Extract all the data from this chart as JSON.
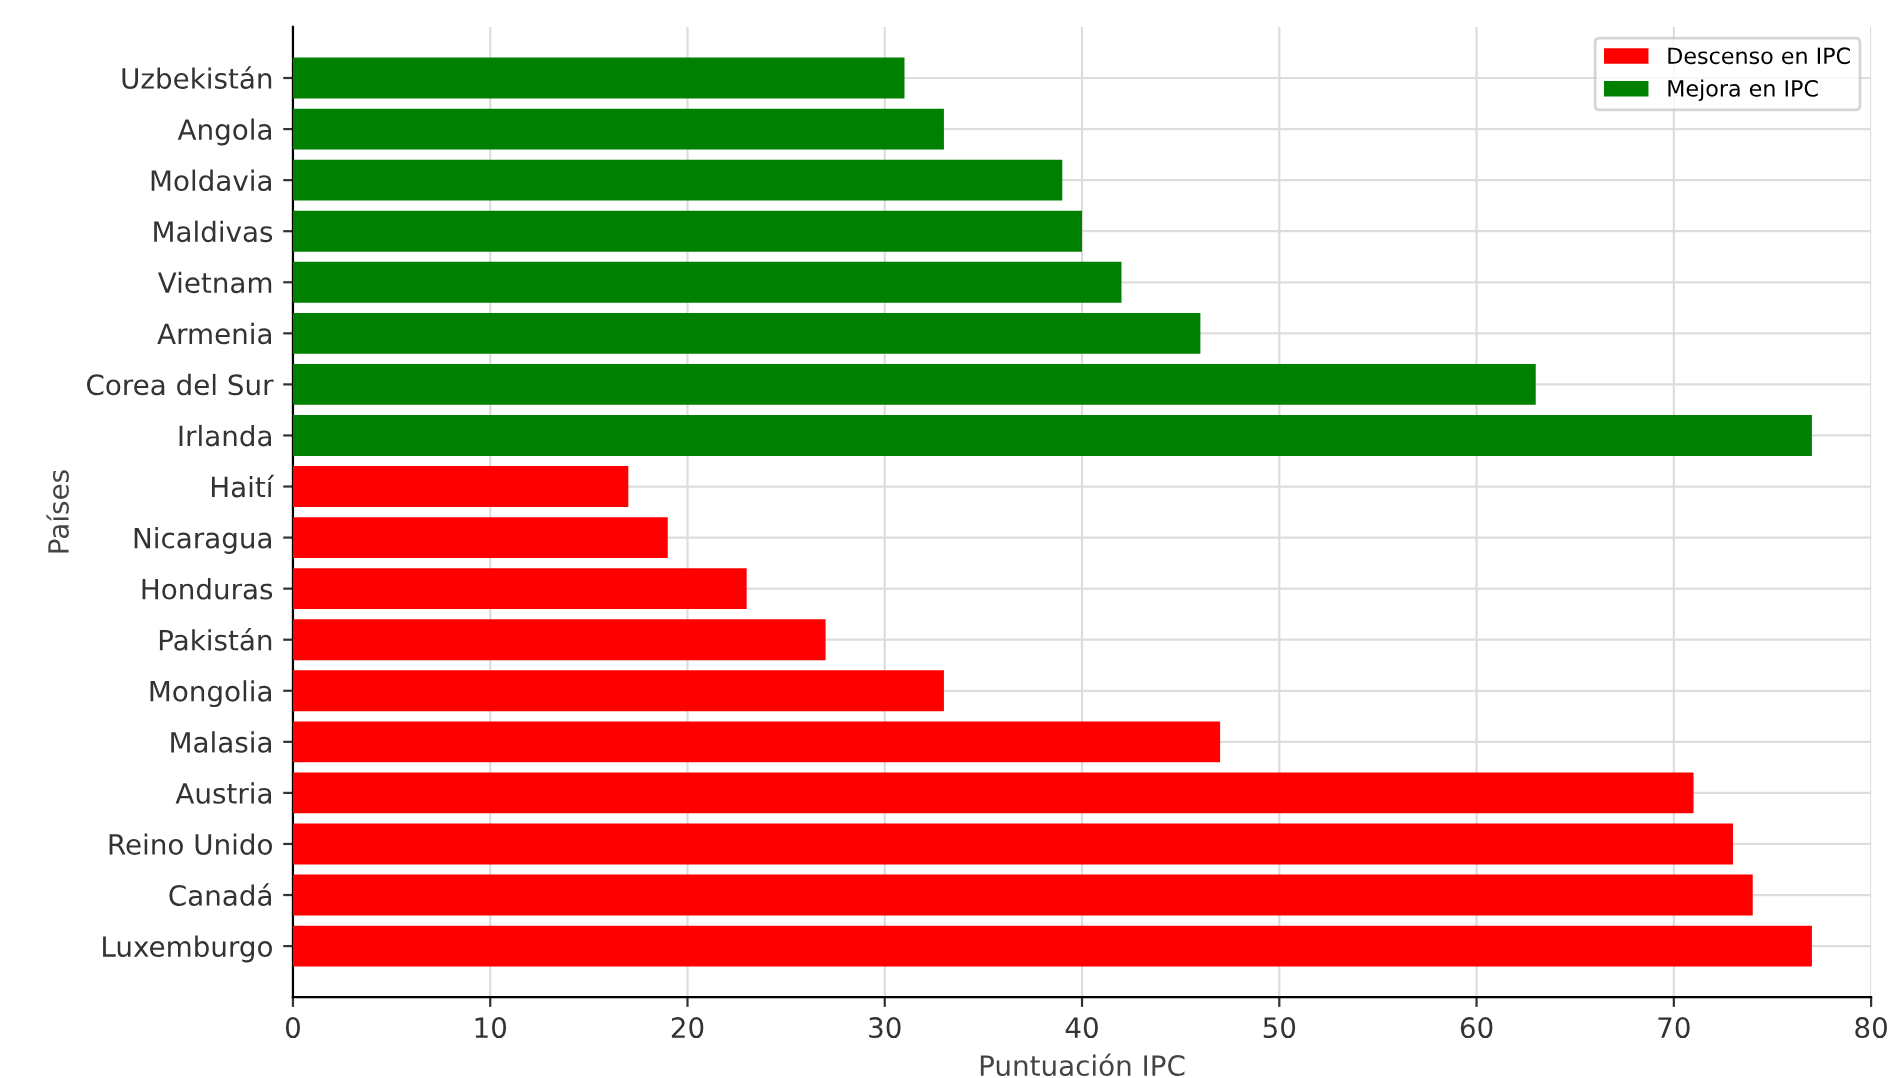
{
  "chart_data": {
    "type": "bar",
    "orientation": "horizontal",
    "xlabel": "Puntuación IPC",
    "ylabel": "Países",
    "categories": [
      "Uzbekistán",
      "Angola",
      "Moldavia",
      "Maldivas",
      "Vietnam",
      "Armenia",
      "Corea del Sur",
      "Irlanda",
      "Haití",
      "Nicaragua",
      "Honduras",
      "Pakistán",
      "Mongolia",
      "Malasia",
      "Austria",
      "Reino Unido",
      "Canadá",
      "Luxemburgo"
    ],
    "series": [
      {
        "name": "Descenso en IPC",
        "color": "#ff0000",
        "values": [
          null,
          null,
          null,
          null,
          null,
          null,
          null,
          null,
          17,
          19,
          23,
          27,
          33,
          47,
          71,
          73,
          74,
          77
        ]
      },
      {
        "name": "Mejora en IPC",
        "color": "#008000",
        "values": [
          31,
          33,
          39,
          40,
          42,
          46,
          63,
          77,
          null,
          null,
          null,
          null,
          null,
          null,
          null,
          null,
          null,
          null
        ]
      }
    ],
    "xlim": [
      0,
      80
    ],
    "xticks": [
      0,
      10,
      20,
      30,
      40,
      50,
      60,
      70,
      80
    ],
    "grid": true,
    "legend": "top right"
  }
}
